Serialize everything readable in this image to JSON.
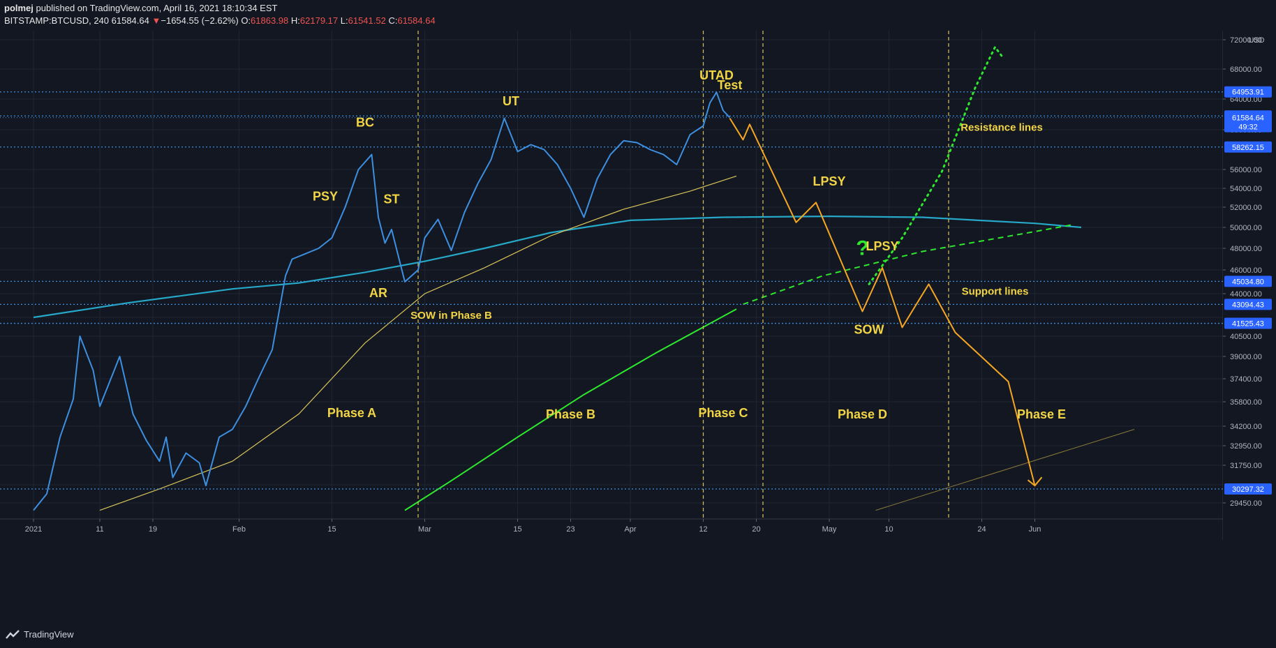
{
  "header": {
    "author": "polmej",
    "published": " published on TradingView.com, April 16, 2021 18:10:34 EST",
    "symbol": "BITSTAMP:BTCUSD, 240",
    "last": "61584.64",
    "change_arrow": "▼",
    "change": "−1654.55 (−2.62%)",
    "o_label": "O:",
    "o_value": "61863.98",
    "h_label": "H:",
    "h_value": "62179.17",
    "l_label": "L:",
    "l_value": "61541.52",
    "c_label": "C:",
    "c_value": "61584.64"
  },
  "footer": {
    "brand": "TradingView",
    "logo_icon": "tradingview-logo-icon"
  },
  "colors": {
    "background": "#131722",
    "grid": "#1e2433",
    "price": "#3d8fe0",
    "ma_cyan": "#26a8c8",
    "ma_yellow": "#d9c55a",
    "ma_green": "#2ee82e",
    "projection": "#f5a623",
    "phase_line": "#d9c55a",
    "level": "#3d8fe0",
    "badge": "#2962ff",
    "label": "#f2d544"
  },
  "chart_data": {
    "type": "line",
    "title": "",
    "currency_label": "USD",
    "y_axis_ticks": [
      "72000.00",
      "68000.00",
      "64000.00",
      "60000.00",
      "56000.00",
      "54000.00",
      "52000.00",
      "50000.00",
      "48000.00",
      "46000.00",
      "44000.00",
      "42000.00",
      "40500.00",
      "39000.00",
      "37400.00",
      "35800.00",
      "34200.00",
      "32950.00",
      "31750.00",
      "30550.00",
      "29450.00"
    ],
    "x_axis_ticks": [
      "2021",
      "11",
      "19",
      "Feb",
      "15",
      "Mar",
      "15",
      "23",
      "Apr",
      "12",
      "20",
      "May",
      "10",
      "24",
      "Jun"
    ],
    "horizontal_levels": [
      "64953.91",
      "61796.16",
      "58262.15",
      "45034.80",
      "43094.43",
      "41525.43",
      "30297.32"
    ],
    "last_price": "61584.64",
    "last_price_timer": "49:32",
    "series": [
      {
        "role": "price",
        "x": [
          "2021-01-01",
          "2021-01-03",
          "2021-01-05",
          "2021-01-07",
          "2021-01-08",
          "2021-01-10",
          "2021-01-11",
          "2021-01-13",
          "2021-01-14",
          "2021-01-16",
          "2021-01-18",
          "2021-01-20",
          "2021-01-21",
          "2021-01-22",
          "2021-01-24",
          "2021-01-26",
          "2021-01-27",
          "2021-01-29",
          "2021-01-31",
          "2021-02-02",
          "2021-02-04",
          "2021-02-06",
          "2021-02-08",
          "2021-02-09",
          "2021-02-11",
          "2021-02-13",
          "2021-02-15",
          "2021-02-17",
          "2021-02-19",
          "2021-02-21",
          "2021-02-22",
          "2021-02-23",
          "2021-02-24",
          "2021-02-26",
          "2021-02-28",
          "2021-03-01",
          "2021-03-03",
          "2021-03-05",
          "2021-03-07",
          "2021-03-09",
          "2021-03-11",
          "2021-03-13",
          "2021-03-15",
          "2021-03-17",
          "2021-03-19",
          "2021-03-21",
          "2021-03-23",
          "2021-03-25",
          "2021-03-27",
          "2021-03-29",
          "2021-03-31",
          "2021-04-02",
          "2021-04-04",
          "2021-04-06",
          "2021-04-08",
          "2021-04-10",
          "2021-04-12",
          "2021-04-13",
          "2021-04-14",
          "2021-04-15",
          "2021-04-16"
        ],
        "values": [
          29000,
          30000,
          33500,
          36000,
          40500,
          38000,
          35500,
          37800,
          39000,
          35000,
          33300,
          32000,
          33500,
          31000,
          32500,
          31900,
          30500,
          33500,
          34000,
          35500,
          37500,
          39500,
          45500,
          47000,
          47500,
          48000,
          49000,
          52000,
          56000,
          57500,
          51000,
          48500,
          49800,
          45000,
          46000,
          49000,
          50800,
          47800,
          51500,
          54500,
          57000,
          61500,
          57800,
          58500,
          58000,
          56500,
          54000,
          51000,
          55000,
          57500,
          58900,
          58700,
          58000,
          57500,
          56500,
          59500,
          60500,
          63500,
          64900,
          62500,
          61584.64
        ]
      },
      {
        "role": "moving-average-cyan",
        "x": [
          "2021-01-01",
          "2021-01-15",
          "2021-01-31",
          "2021-02-10",
          "2021-02-20",
          "2021-03-01",
          "2021-03-10",
          "2021-03-20",
          "2021-04-01",
          "2021-04-15",
          "2021-05-01",
          "2021-05-15",
          "2021-06-01",
          "2021-06-08"
        ],
        "values": [
          42000,
          43200,
          44400,
          44900,
          45800,
          46800,
          48000,
          49500,
          50700,
          51000,
          51100,
          51000,
          50400,
          50000
        ]
      },
      {
        "role": "moving-average-yellow",
        "x": [
          "2021-01-11",
          "2021-01-20",
          "2021-01-31",
          "2021-02-10",
          "2021-02-20",
          "2021-03-01",
          "2021-03-10",
          "2021-03-20",
          "2021-03-31",
          "2021-04-10",
          "2021-04-17"
        ],
        "values": [
          29000,
          30300,
          32000,
          35000,
          40000,
          44000,
          46200,
          49200,
          51800,
          53700,
          55300
        ]
      },
      {
        "role": "moving-average-green",
        "x": [
          "2021-02-26",
          "2021-03-05",
          "2021-03-15",
          "2021-03-25",
          "2021-04-05",
          "2021-04-17"
        ],
        "values": [
          29000,
          30800,
          33500,
          36300,
          39300,
          42700
        ]
      },
      {
        "role": "projection",
        "x": [
          "2021-04-16",
          "2021-04-18",
          "2021-04-19",
          "2021-04-26",
          "2021-04-29",
          "2021-05-06",
          "2021-05-09",
          "2021-05-12",
          "2021-05-16",
          "2021-05-20",
          "2021-05-28",
          "2021-06-01"
        ],
        "values": [
          61500,
          59000,
          60700,
          50500,
          52500,
          42500,
          46200,
          41200,
          44800,
          40800,
          37200,
          30500
        ]
      },
      {
        "role": "bullish-projection-dotted",
        "x": [
          "2021-05-07",
          "2021-05-12",
          "2021-05-18",
          "2021-05-23",
          "2021-05-26",
          "2021-05-27"
        ],
        "values": [
          44800,
          49000,
          55800,
          65500,
          71000,
          69800
        ]
      },
      {
        "role": "trend-extension-dashed",
        "x": [
          "2021-04-18",
          "2021-04-30",
          "2021-05-15",
          "2021-06-01",
          "2021-06-07"
        ],
        "values": [
          43100,
          45500,
          47700,
          49600,
          50300
        ]
      },
      {
        "role": "long-trendline",
        "x": [
          "2021-05-08",
          "2021-06-16"
        ],
        "values": [
          29000,
          34000
        ]
      }
    ],
    "phase_separators": [
      "2021-02-28",
      "2021-04-12",
      "2021-04-21",
      "2021-05-19"
    ],
    "annotations": [
      {
        "text": "PSY",
        "x": "2021-02-14",
        "y": 52700
      },
      {
        "text": "BC",
        "x": "2021-02-20",
        "y": 60400
      },
      {
        "text": "ST",
        "x": "2021-02-24",
        "y": 52400
      },
      {
        "text": "AR",
        "x": "2021-02-22",
        "y": 43700
      },
      {
        "text": "SOW in Phase B",
        "x": "2021-03-05",
        "y": 41900
      },
      {
        "text": "UT",
        "x": "2021-03-14",
        "y": 63200
      },
      {
        "text": "UTAD",
        "x": "2021-04-14",
        "y": 66600
      },
      {
        "text": "Test",
        "x": "2021-04-16",
        "y": 65300
      },
      {
        "text": "LPSY",
        "x": "2021-05-01",
        "y": 54300
      },
      {
        "text": "?",
        "x": "2021-05-06",
        "y": 47400
      },
      {
        "text": "LPSY",
        "x": "2021-05-09",
        "y": 47800
      },
      {
        "text": "SOW",
        "x": "2021-05-07",
        "y": 40700
      },
      {
        "text": "Resistance lines",
        "x": "2021-05-27",
        "y": 59900
      },
      {
        "text": "Support lines",
        "x": "2021-05-26",
        "y": 43900
      },
      {
        "text": "Phase A",
        "x": "2021-02-18",
        "y": 34800
      },
      {
        "text": "Phase B",
        "x": "2021-03-23",
        "y": 34700
      },
      {
        "text": "Phase C",
        "x": "2021-04-15",
        "y": 34800
      },
      {
        "text": "Phase D",
        "x": "2021-05-06",
        "y": 34700
      },
      {
        "text": "Phase E",
        "x": "2021-06-02",
        "y": 34700
      }
    ],
    "grid": true,
    "legend": "none"
  }
}
